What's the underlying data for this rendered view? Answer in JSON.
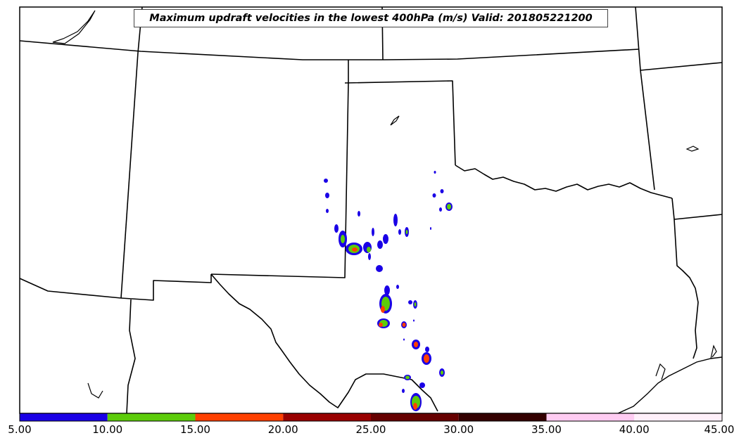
{
  "title": "Maximum updraft velocities in the lowest 400hPa (m/s) Valid: 201805221200",
  "colorbar": {
    "ticks": [
      "5.00",
      "10.00",
      "15.00",
      "20.00",
      "25.00",
      "30.00",
      "35.00",
      "40.00",
      "45.00"
    ],
    "colors": [
      "#1a00e6",
      "#5ccc0a",
      "#ff4000",
      "#990000",
      "#660000",
      "#330000",
      "#ffccf2",
      "#fff0fa"
    ]
  },
  "map": {
    "region": "Southern Great Plains (Texas, Oklahoma, New Mexico, Kansas)",
    "line_color": "#000000",
    "background": "#ffffff"
  }
}
